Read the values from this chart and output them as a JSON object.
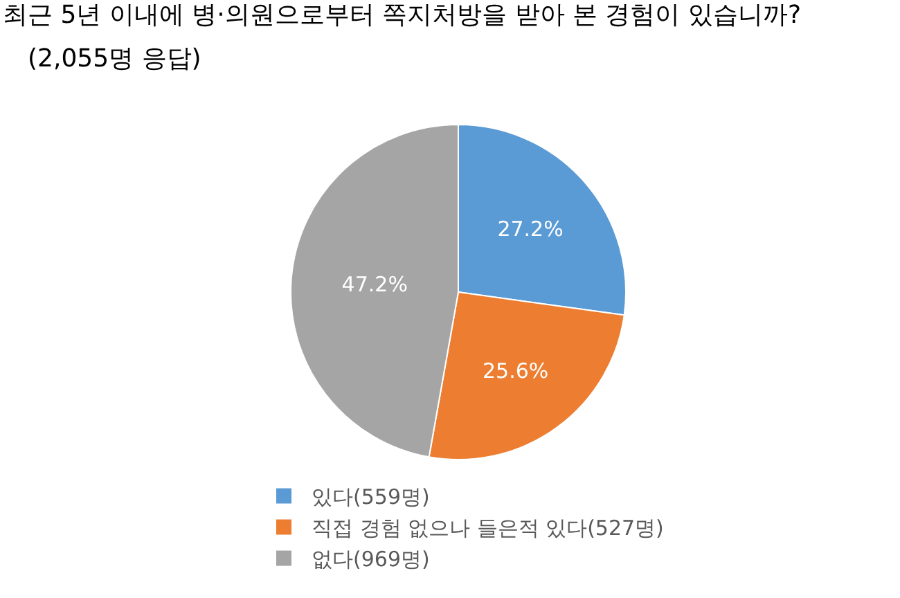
{
  "chart_data": {
    "type": "pie",
    "title": "최근 5년 이내에 병·의원으로부터 쪽지처방을 받아 본 경험이 있습니까?",
    "subtitle": "(2,055명 응답)",
    "categories": [
      "있다(559명)",
      "직접 경험 없으나 들은적 있다(527명)",
      "없다(969명)"
    ],
    "values": [
      27.2,
      25.6,
      47.2
    ],
    "colors": [
      "#5b9bd5",
      "#ed7d31",
      "#a5a5a5"
    ],
    "value_labels": [
      "27.2%",
      "25.6%",
      "47.2%"
    ],
    "legend": "bottom"
  }
}
